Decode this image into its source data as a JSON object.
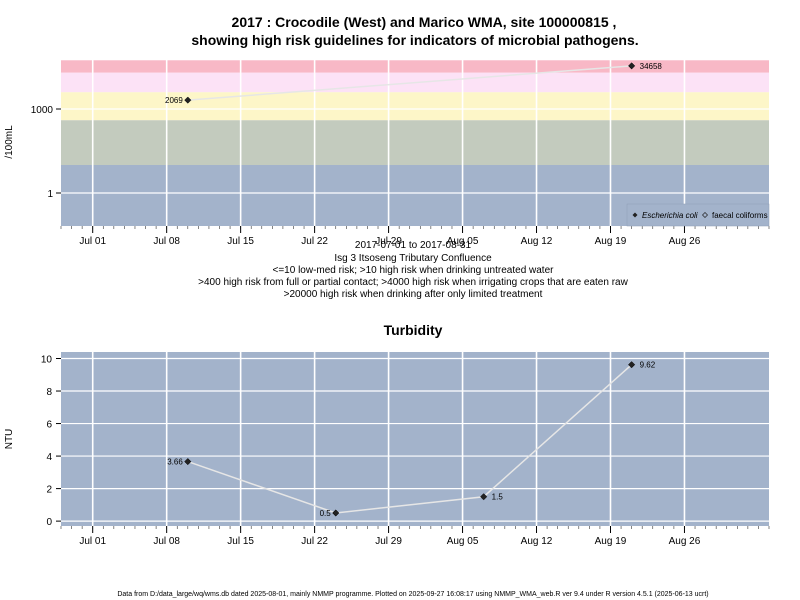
{
  "chart_data": [
    {
      "type": "line",
      "title_line1": "2017 : Crocodile (West) and Marico WMA, site 100000815 ,",
      "title_line2": "showing high risk guidelines for indicators of microbial pathogens.",
      "ylabel": "/100mL",
      "y_scale": "log",
      "y_ticks": [
        {
          "value": 1,
          "label": "1"
        },
        {
          "value": 1000,
          "label": "1000"
        }
      ],
      "x_ticks": [
        {
          "date": "2017-07-01",
          "label": "Jul 01"
        },
        {
          "date": "2017-07-08",
          "label": "Jul 08"
        },
        {
          "date": "2017-07-15",
          "label": "Jul 15"
        },
        {
          "date": "2017-07-22",
          "label": "Jul 22"
        },
        {
          "date": "2017-07-29",
          "label": "Jul 29"
        },
        {
          "date": "2017-08-05",
          "label": "Aug 05"
        },
        {
          "date": "2017-08-12",
          "label": "Aug 12"
        },
        {
          "date": "2017-08-19",
          "label": "Aug 19"
        },
        {
          "date": "2017-08-26",
          "label": "Aug 26"
        }
      ],
      "x_range": [
        "2017-06-28",
        "2017-09-03"
      ],
      "bands": [
        {
          "from": 0.03,
          "to": 10,
          "color": "#a3b3cb"
        },
        {
          "from": 10,
          "to": 400,
          "color": "#c3cbbe"
        },
        {
          "from": 400,
          "to": 4000,
          "color": "#fdf6c8"
        },
        {
          "from": 4000,
          "to": 20000,
          "color": "#fce2f6"
        },
        {
          "from": 20000,
          "to": 55000,
          "color": "#f8b8c6"
        }
      ],
      "series": [
        {
          "name": "Escherichia coli",
          "marker": "filled-diamond",
          "points": [
            {
              "date": "2017-07-10",
              "value": 2069,
              "label": "2069"
            },
            {
              "date": "2017-08-21",
              "value": 34658,
              "label": "34658"
            }
          ]
        }
      ],
      "legend": {
        "placement": "bottom-right",
        "entries": [
          {
            "label": "Escherichia coli",
            "marker": "filled-diamond",
            "italic": true
          },
          {
            "label": "faecal coliforms",
            "marker": "open-diamond",
            "italic": false
          }
        ]
      },
      "caption_lines": [
        "2017-07-01 to 2017-08-31",
        "Isg 3 Itsoseng Tributary Confluence",
        "<=10 low-med risk; >10 high risk when drinking untreated water",
        ">400 high risk from full or partial contact; >4000 high risk when irrigating crops that are eaten raw",
        ">20000 high risk when drinking after only limited treatment"
      ]
    },
    {
      "type": "line",
      "title": "Turbidity",
      "ylabel": "NTU",
      "ylim": [
        -0.3,
        10.4
      ],
      "y_ticks": [
        {
          "value": 0,
          "label": "0"
        },
        {
          "value": 2,
          "label": "2"
        },
        {
          "value": 4,
          "label": "4"
        },
        {
          "value": 6,
          "label": "6"
        },
        {
          "value": 8,
          "label": "8"
        },
        {
          "value": 10,
          "label": "10"
        }
      ],
      "x_ticks": [
        {
          "date": "2017-07-01",
          "label": "Jul 01"
        },
        {
          "date": "2017-07-08",
          "label": "Jul 08"
        },
        {
          "date": "2017-07-15",
          "label": "Jul 15"
        },
        {
          "date": "2017-07-22",
          "label": "Jul 22"
        },
        {
          "date": "2017-07-29",
          "label": "Jul 29"
        },
        {
          "date": "2017-08-05",
          "label": "Aug 05"
        },
        {
          "date": "2017-08-12",
          "label": "Aug 12"
        },
        {
          "date": "2017-08-19",
          "label": "Aug 19"
        },
        {
          "date": "2017-08-26",
          "label": "Aug 26"
        }
      ],
      "x_range": [
        "2017-06-28",
        "2017-09-03"
      ],
      "background": "#a3b3cb",
      "series": [
        {
          "points": [
            {
              "date": "2017-07-10",
              "value": 3.66,
              "label": "3.66"
            },
            {
              "date": "2017-07-24",
              "value": 0.5,
              "label": "0.5"
            },
            {
              "date": "2017-08-07",
              "value": 1.5,
              "label": "1.5"
            },
            {
              "date": "2017-08-21",
              "value": 9.62,
              "label": "9.62"
            }
          ]
        }
      ]
    }
  ],
  "footer": "Data from D:/data_large/wq/wms.db dated 2025-08-01, mainly NMMP programme. Plotted on 2025-09-27 16:08:17 using NMMP_WMA_web.R ver 9.4 under R version 4.5.1 (2025-06-13 ucrt)"
}
